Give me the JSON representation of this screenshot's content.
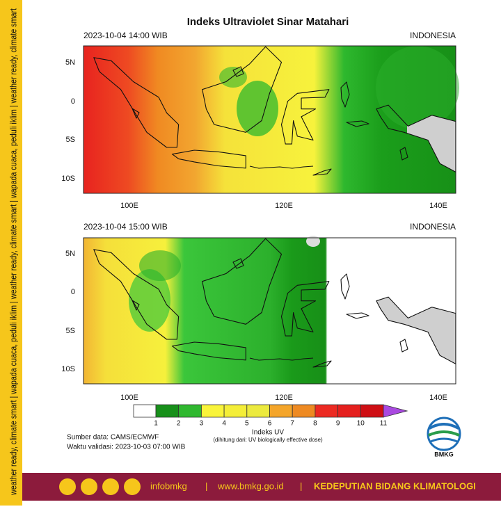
{
  "side_text": "weather ready, climate smart | wapada cuaca, peduli iklim | weather ready, climate smart | wapada cuaca, peduli iklim | weather ready, climate smart",
  "title": "Indeks Ultraviolet Sinar Matahari",
  "panels": [
    {
      "datetime": "2023-10-04  14:00 WIB",
      "region": "INDONESIA"
    },
    {
      "datetime": "2023-10-04  15:00 WIB",
      "region": "INDONESIA"
    }
  ],
  "lat_labels": [
    "5N",
    "0",
    "5S",
    "10S"
  ],
  "lon_labels": [
    "100E",
    "120E",
    "140E"
  ],
  "colorbar": {
    "title": "Indeks UV",
    "note": "(dihitung dari: UV biologically effective dose)",
    "labels": [
      1,
      2,
      3,
      4,
      5,
      6,
      7,
      8,
      9,
      10,
      11
    ]
  },
  "source": "Sumber data: CAMS/ECMWF",
  "valid_time": "Waktu validasi: 2023-10-03 07:00 WIB",
  "logo": "BMKG",
  "footer": {
    "handle": "infobmkg",
    "separator": "|",
    "website": "www.bmkg.go.id",
    "division": "KEDEPUTIAN BIDANG KLIMATOLOGI"
  }
}
